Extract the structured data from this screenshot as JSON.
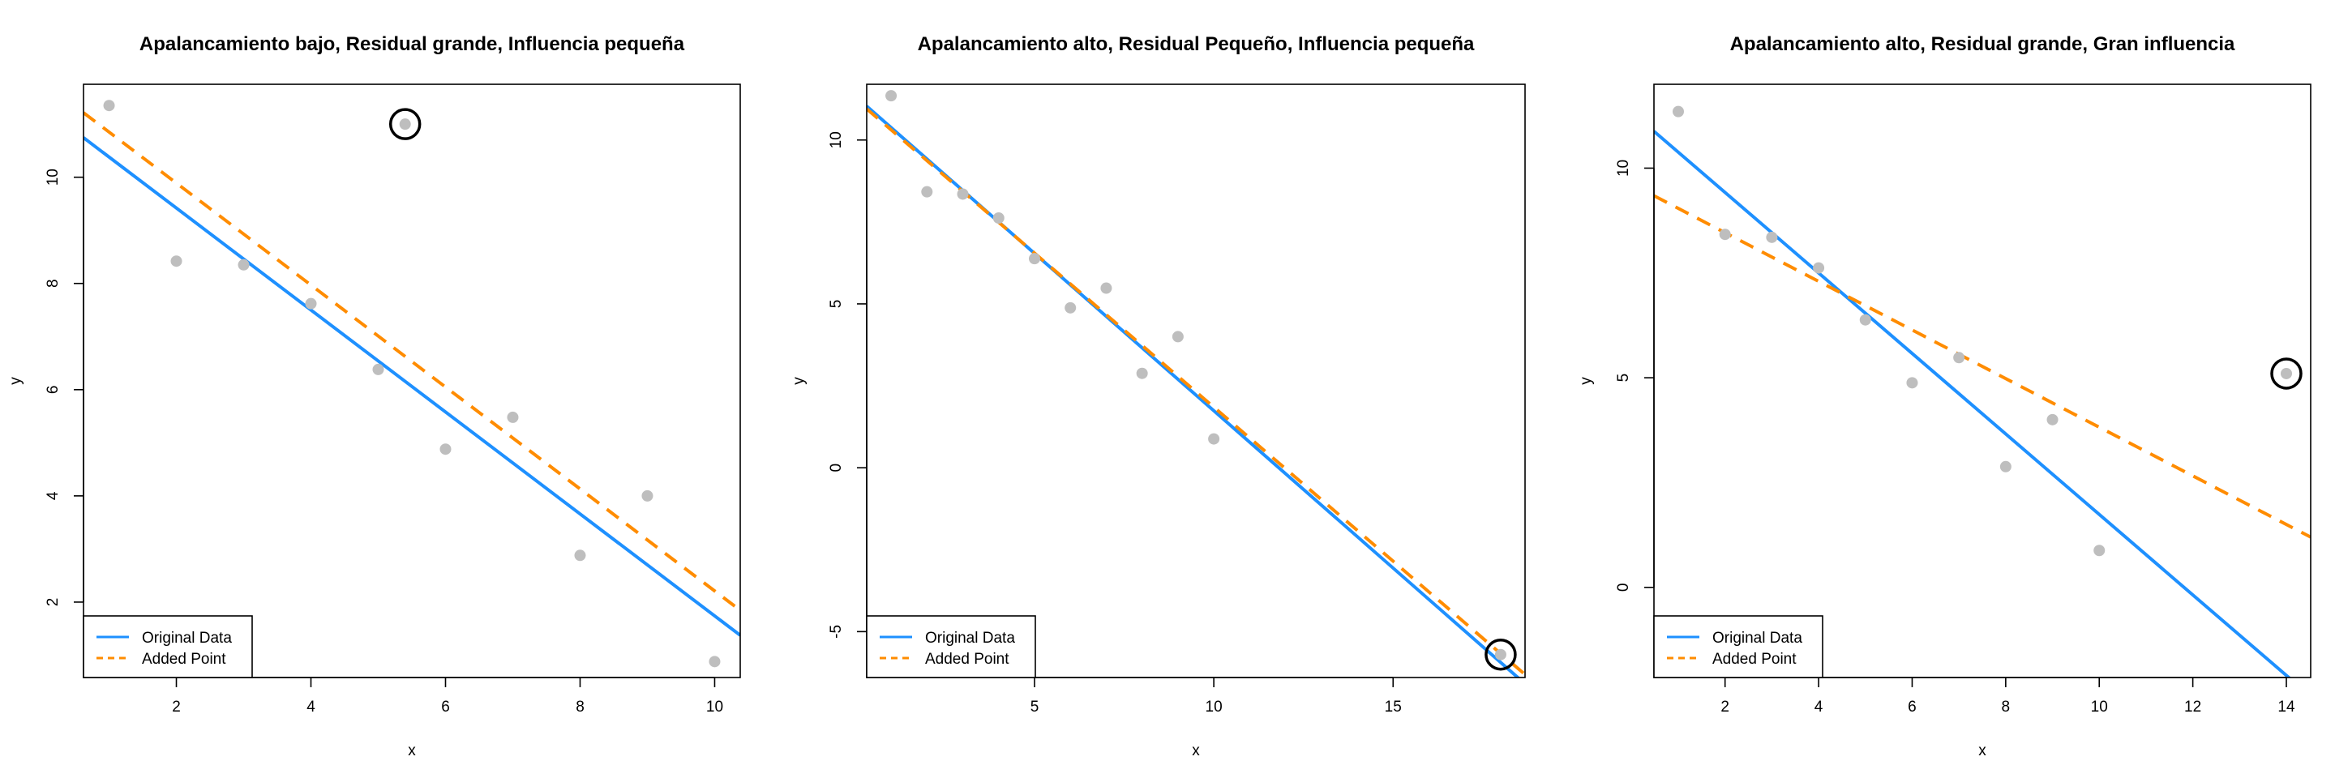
{
  "colors": {
    "original": "#1E90FF",
    "added": "#FF8C00",
    "points": "#BEBEBE",
    "circle": "#000000"
  },
  "legend": {
    "original_label": "Original Data",
    "added_label": "Added Point"
  },
  "chart_data": [
    {
      "type": "scatter",
      "title": "Apalancamiento bajo, Residual grande, Influencia pequeña",
      "xlabel": "x",
      "ylabel": "y",
      "xlim": [
        0.62,
        10.38
      ],
      "ylim": [
        0.58,
        11.75
      ],
      "xticks": [
        2,
        4,
        6,
        8,
        10
      ],
      "yticks": [
        2,
        4,
        6,
        8,
        10
      ],
      "points": {
        "x": [
          1,
          2,
          3,
          4,
          5,
          6,
          7,
          8,
          9,
          10
        ],
        "y": [
          11.35,
          8.42,
          8.35,
          7.62,
          6.38,
          4.88,
          5.48,
          2.88,
          4.0,
          0.88
        ]
      },
      "added_point": {
        "x": 5.4,
        "y": 11.0
      },
      "original_line": {
        "intercept": 11.34,
        "slope": -0.96
      },
      "added_line": {
        "intercept": 11.81,
        "slope": -0.96
      },
      "grid": false,
      "legend_position": "bottom-left"
    },
    {
      "type": "scatter",
      "title": "Apalancamiento alto, Residual Pequeño, Influencia pequeña",
      "xlabel": "x",
      "ylabel": "y",
      "xlim": [
        0.32,
        18.68
      ],
      "ylim": [
        -6.4,
        11.7
      ],
      "xticks": [
        5,
        10,
        15
      ],
      "yticks": [
        -5,
        0,
        5,
        10
      ],
      "points": {
        "x": [
          1,
          2,
          3,
          4,
          5,
          6,
          7,
          8,
          9,
          10
        ],
        "y": [
          11.35,
          8.42,
          8.35,
          7.62,
          6.38,
          4.88,
          5.48,
          2.88,
          4.0,
          0.88
        ]
      },
      "added_point": {
        "x": 18,
        "y": -5.7
      },
      "original_line": {
        "intercept": 11.34,
        "slope": -0.96
      },
      "added_line": {
        "intercept": 11.25,
        "slope": -0.94
      },
      "grid": false,
      "legend_position": "bottom-left"
    },
    {
      "type": "scatter",
      "title": "Apalancamiento alto, Residual grande, Gran influencia",
      "xlabel": "x",
      "ylabel": "y",
      "xlim": [
        0.48,
        14.52
      ],
      "ylim": [
        -2.15,
        12.0
      ],
      "xticks": [
        2,
        4,
        6,
        8,
        10,
        12,
        14
      ],
      "yticks": [
        0,
        5,
        10
      ],
      "points": {
        "x": [
          1,
          2,
          3,
          4,
          5,
          6,
          7,
          8,
          9,
          10
        ],
        "y": [
          11.35,
          8.42,
          8.35,
          7.62,
          6.38,
          4.88,
          5.48,
          2.88,
          4.0,
          0.88
        ]
      },
      "added_point": {
        "x": 14,
        "y": 5.1
      },
      "original_line": {
        "intercept": 11.34,
        "slope": -0.96
      },
      "added_line": {
        "intercept": 9.62,
        "slope": -0.58
      },
      "grid": false,
      "legend_position": "bottom-left"
    }
  ]
}
